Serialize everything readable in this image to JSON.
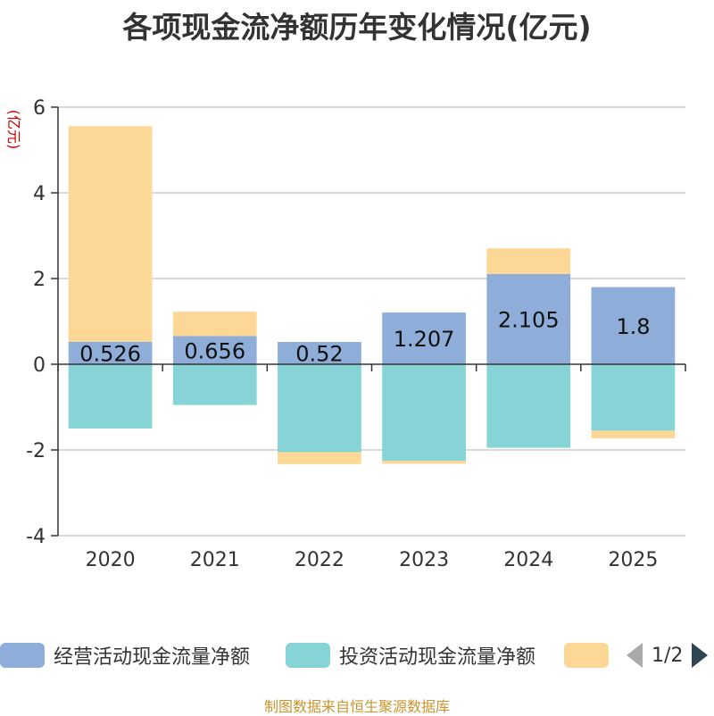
{
  "chart_data": {
    "type": "bar",
    "stacked": true,
    "title": "各项现金流净额历年变化情况(亿元)",
    "ylabel": "(亿元)",
    "xlabel": "",
    "ylim": [
      -4,
      6
    ],
    "yticks": [
      6,
      4,
      2,
      0,
      -2,
      -4
    ],
    "grid": true,
    "legend_position": "bottom",
    "categories": [
      "2020",
      "2021",
      "2022",
      "2023",
      "2024",
      "2025"
    ],
    "series": [
      {
        "name": "经营活动现金流量净额",
        "color": "#8eaed9",
        "values": [
          0.526,
          0.656,
          0.52,
          1.207,
          2.105,
          1.8
        ],
        "labels": [
          "0.526",
          "0.656",
          "0.52",
          "1.207",
          "2.105",
          "1.8"
        ]
      },
      {
        "name": "投资活动现金流量净额",
        "color": "#86d4d6",
        "values": [
          -1.5,
          -0.95,
          -2.05,
          -2.25,
          -1.95,
          -1.55
        ]
      },
      {
        "name": "",
        "color": "#fdd796",
        "values": [
          5.03,
          0.57,
          -0.28,
          -0.07,
          0.6,
          -0.18
        ]
      }
    ]
  },
  "legend": {
    "items": [
      {
        "label": "经营活动现金流量净额",
        "color": "#8eaed9"
      },
      {
        "label": "投资活动现金流量净额",
        "color": "#86d4d6"
      },
      {
        "label": "",
        "color": "#fdd796"
      }
    ],
    "page": "1/2"
  },
  "footer": "制图数据来自恒生聚源数据库"
}
